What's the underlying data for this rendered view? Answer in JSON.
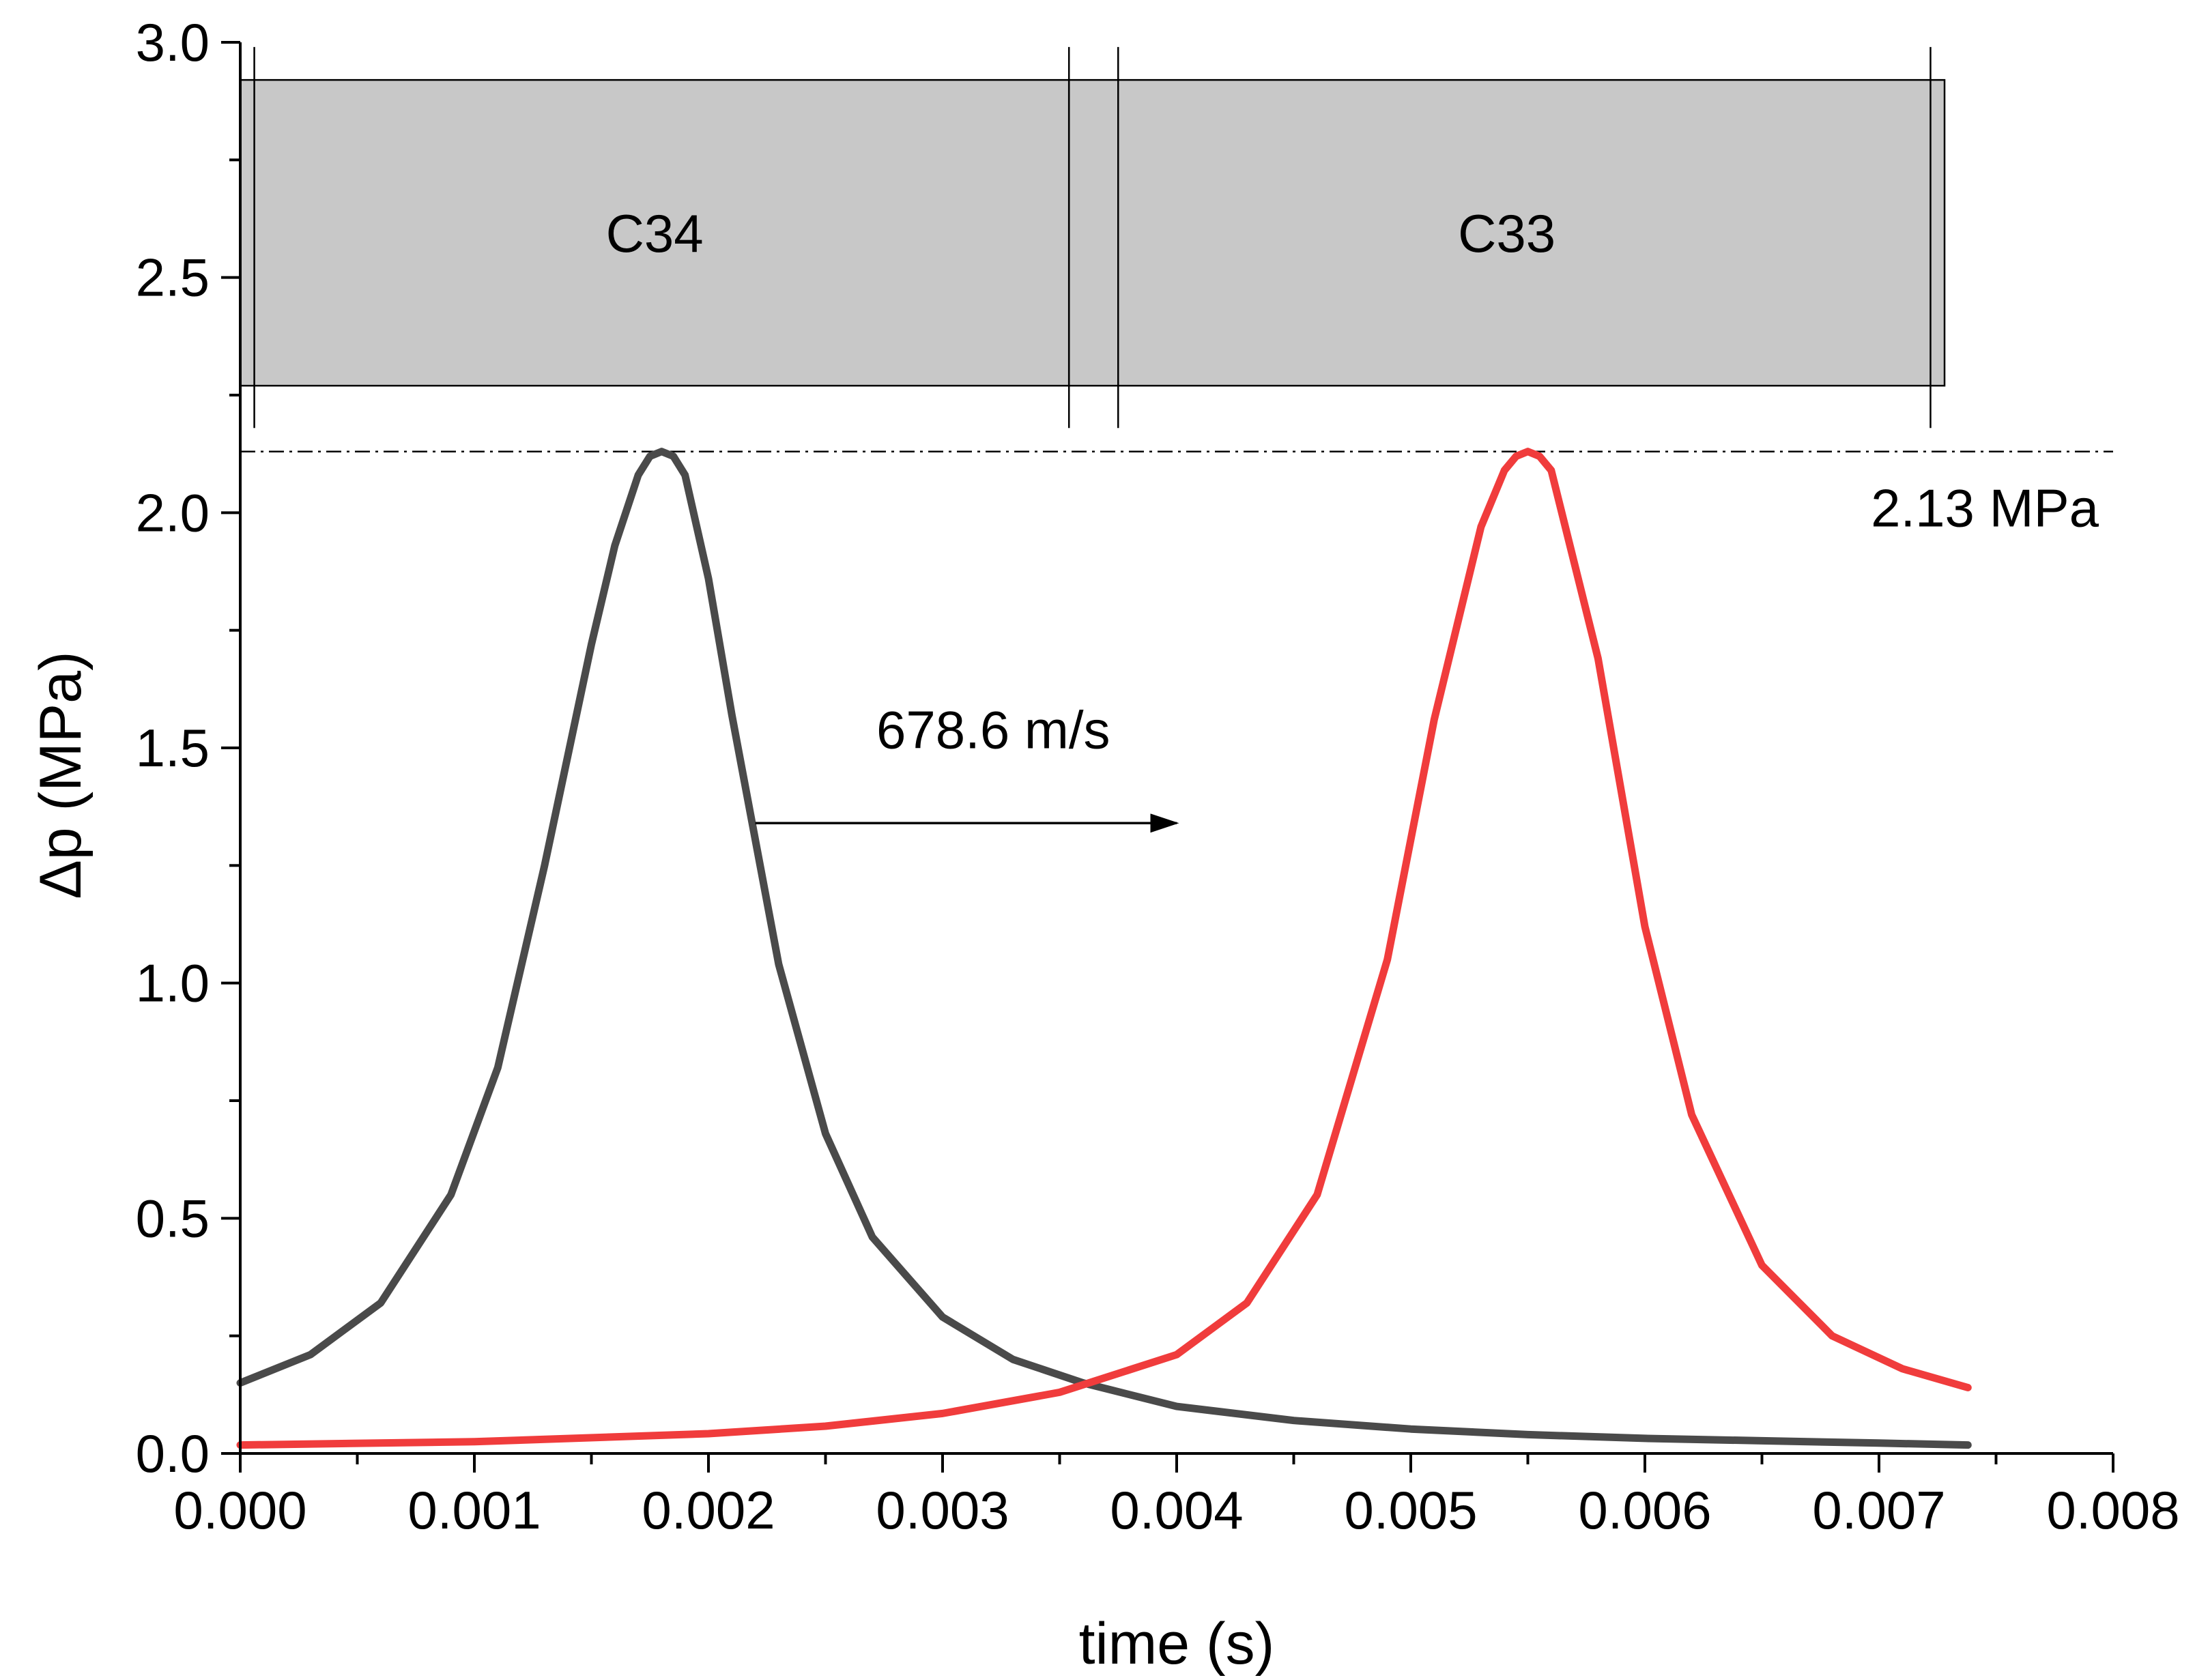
{
  "chart_data": {
    "type": "line",
    "xlabel": "time (s)",
    "ylabel": "Δp (MPa)",
    "xlim": [
      0.0,
      0.008
    ],
    "ylim": [
      0.0,
      3.0
    ],
    "x_ticks": [
      "0.000",
      "0.001",
      "0.002",
      "0.003",
      "0.004",
      "0.005",
      "0.006",
      "0.007",
      "0.008"
    ],
    "y_ticks": [
      "0.0",
      "0.5",
      "1.0",
      "1.5",
      "2.0",
      "2.5",
      "3.0"
    ],
    "grid": false,
    "series": [
      {
        "color": "#4a4a4a",
        "x": [
          0.0,
          0.0003,
          0.0006,
          0.0009,
          0.0011,
          0.0013,
          0.0015,
          0.0016,
          0.0017,
          0.00175,
          0.0018,
          0.00185,
          0.0019,
          0.002,
          0.0021,
          0.0023,
          0.0025,
          0.0027,
          0.003,
          0.0033,
          0.0036,
          0.004,
          0.0045,
          0.005,
          0.0055,
          0.006,
          0.0065,
          0.007,
          0.00738
        ],
        "y": [
          0.15,
          0.21,
          0.32,
          0.55,
          0.82,
          1.25,
          1.72,
          1.93,
          2.08,
          2.12,
          2.13,
          2.12,
          2.08,
          1.86,
          1.57,
          1.04,
          0.68,
          0.46,
          0.29,
          0.2,
          0.15,
          0.1,
          0.07,
          0.052,
          0.04,
          0.032,
          0.027,
          0.022,
          0.018
        ]
      },
      {
        "color": "#f03c3c",
        "x": [
          0.0,
          0.001,
          0.002,
          0.0025,
          0.003,
          0.0035,
          0.004,
          0.0043,
          0.0046,
          0.0049,
          0.0051,
          0.0053,
          0.0054,
          0.00545,
          0.0055,
          0.00555,
          0.0056,
          0.0058,
          0.006,
          0.0062,
          0.0065,
          0.0068,
          0.0071,
          0.00738
        ],
        "y": [
          0.018,
          0.025,
          0.042,
          0.058,
          0.085,
          0.13,
          0.21,
          0.32,
          0.55,
          1.05,
          1.56,
          1.97,
          2.09,
          2.12,
          2.13,
          2.12,
          2.09,
          1.69,
          1.12,
          0.72,
          0.4,
          0.25,
          0.18,
          0.14
        ]
      }
    ],
    "bars": [
      {
        "label": "C34",
        "x_start": 0.0,
        "x_end": 0.00354,
        "y_bottom": 2.27,
        "y_top": 2.92
      },
      {
        "label": "C33",
        "x_start": 0.00354,
        "x_end": 0.00728,
        "y_bottom": 2.27,
        "y_top": 2.92
      }
    ],
    "vertical_lines": [
      6e-05,
      0.00354,
      0.00375,
      0.00722
    ],
    "hline": {
      "y": 2.13,
      "label": "2.13 MPa"
    },
    "arrow": {
      "label": "678.6 m/s",
      "x_start": 0.0022,
      "x_end": 0.004,
      "y": 1.34
    }
  }
}
